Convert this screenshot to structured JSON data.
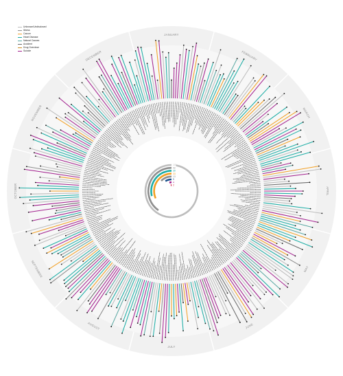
{
  "legend": {
    "items": [
      {
        "label": "Unknown/Undisclosed",
        "color": "#bdbdbd"
      },
      {
        "label": "Illness",
        "color": "#8e8e8e"
      },
      {
        "label": "Cancer",
        "color": "#f2a024"
      },
      {
        "label": "Heart Disease",
        "color": "#1cada5"
      },
      {
        "label": "Natural Causes",
        "color": "#5aa8a3"
      },
      {
        "label": "Accident",
        "color": "#6b6b6b"
      },
      {
        "label": "Drug Overdose",
        "color": "#cc8a1e"
      },
      {
        "label": "Suicide",
        "color": "#a3228f"
      }
    ]
  },
  "months": [
    "JANUARY",
    "FEBRUARY",
    "MARCH",
    "APRIL",
    "MAY",
    "JUNE",
    "JULY",
    "AUGUST",
    "SEPTEMBER",
    "OCTOBER",
    "NOVEMBER",
    "DECEMBER"
  ],
  "chart_data": {
    "type": "radial-bar",
    "title": "",
    "categories": [
      "Unknown/Undisclosed",
      "Illness",
      "Cancer",
      "Heart Disease",
      "Natural Causes",
      "Accident",
      "Drug Overdose",
      "Suicide"
    ],
    "summary_values": [
      101,
      42,
      30,
      33,
      13,
      9,
      4,
      2
    ],
    "summary_colors": [
      "#bdbdbd",
      "#8e8e8e",
      "#1cada5",
      "#f2a024",
      "#8e8e8e",
      "#1a4f8a",
      "#a3228f",
      "#d11f3f"
    ]
  }
}
